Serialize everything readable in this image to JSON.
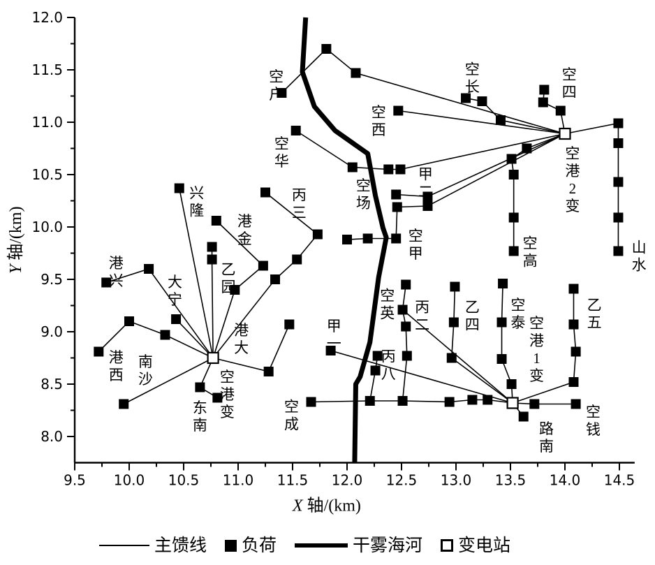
{
  "legend": {
    "items": [
      {
        "symbol": "thin-line",
        "label": "主馈线"
      },
      {
        "symbol": "filled-square",
        "label": "负荷"
      },
      {
        "symbol": "thick-line",
        "label": "干雾海河"
      },
      {
        "symbol": "open-square",
        "label": "变电站"
      }
    ]
  },
  "chart_data": {
    "type": "scatter",
    "title": "",
    "xlabel": "X 轴/(km)",
    "ylabel": "Y 轴/(km)",
    "xlim": [
      9.5,
      14.64
    ],
    "ylim": [
      7.75,
      12.0
    ],
    "xticks": [
      9.5,
      10.0,
      10.5,
      11.0,
      11.5,
      12.0,
      12.5,
      13.0,
      13.5,
      14.0,
      14.5
    ],
    "yticks": [
      8.0,
      8.5,
      9.0,
      9.5,
      10.0,
      10.5,
      11.0,
      11.5,
      12.0
    ],
    "grid": false,
    "legend_position": "bottom",
    "colors": {
      "foreground": "#000000",
      "background": "#ffffff"
    },
    "substations": [
      {
        "name": "空港变",
        "x": 10.77,
        "y": 8.75,
        "label": {
          "text": "空港变",
          "x": 10.9,
          "y": 8.4
        }
      },
      {
        "name": "空港2变",
        "x": 14.0,
        "y": 10.89,
        "label": {
          "text": "空港2变",
          "x": 14.07,
          "y": 10.45
        }
      },
      {
        "name": "空港1变",
        "x": 13.52,
        "y": 8.32,
        "label": {
          "text": "空港1变",
          "x": 13.74,
          "y": 8.83
        }
      }
    ],
    "river": {
      "name": "干雾海河",
      "path": [
        [
          11.62,
          12.0
        ],
        [
          11.59,
          11.48
        ],
        [
          11.7,
          11.15
        ],
        [
          11.89,
          10.92
        ],
        [
          12.19,
          10.7
        ],
        [
          12.26,
          10.3
        ],
        [
          12.33,
          9.99
        ],
        [
          12.36,
          9.9
        ],
        [
          12.29,
          9.52
        ],
        [
          12.21,
          8.9
        ],
        [
          12.12,
          8.57
        ],
        [
          12.08,
          8.5
        ],
        [
          12.07,
          7.75
        ]
      ]
    },
    "feeders": [
      {
        "points": [
          [
            10.77,
            8.75
          ],
          [
            10.46,
            10.37
          ]
        ]
      },
      {
        "points": [
          [
            10.77,
            8.75
          ],
          [
            10.76,
            9.69
          ],
          [
            10.76,
            9.81
          ]
        ]
      },
      {
        "points": [
          [
            10.77,
            8.75
          ],
          [
            10.97,
            9.4
          ],
          [
            11.23,
            9.63
          ],
          [
            10.8,
            10.06
          ]
        ]
      },
      {
        "points": [
          [
            10.77,
            8.75
          ],
          [
            11.34,
            9.5
          ],
          [
            11.54,
            9.69
          ],
          [
            11.73,
            9.93
          ],
          [
            11.25,
            10.33
          ]
        ]
      },
      {
        "points": [
          [
            10.77,
            8.75
          ],
          [
            10.18,
            9.6
          ],
          [
            9.79,
            9.47
          ]
        ]
      },
      {
        "points": [
          [
            10.77,
            8.75
          ],
          [
            10.43,
            9.12
          ]
        ]
      },
      {
        "points": [
          [
            10.77,
            8.75
          ],
          [
            10.33,
            8.97
          ],
          [
            10.0,
            9.1
          ],
          [
            9.72,
            8.81
          ]
        ]
      },
      {
        "points": [
          [
            10.77,
            8.75
          ],
          [
            9.95,
            8.31
          ]
        ]
      },
      {
        "points": [
          [
            10.77,
            8.75
          ],
          [
            10.65,
            8.47
          ],
          [
            10.81,
            8.37
          ]
        ]
      },
      {
        "points": [
          [
            10.77,
            8.75
          ],
          [
            11.28,
            8.62
          ],
          [
            11.47,
            9.07
          ]
        ]
      },
      {
        "points": [
          [
            14.0,
            10.89
          ],
          [
            12.08,
            11.47
          ],
          [
            11.81,
            11.7
          ],
          [
            11.4,
            11.28
          ]
        ]
      },
      {
        "points": [
          [
            14.0,
            10.89
          ],
          [
            12.47,
            11.11
          ]
        ]
      },
      {
        "points": [
          [
            14.0,
            10.89
          ],
          [
            13.41,
            11.02
          ],
          [
            13.24,
            11.2
          ],
          [
            13.09,
            11.23
          ]
        ]
      },
      {
        "points": [
          [
            14.0,
            10.89
          ],
          [
            13.96,
            11.11
          ],
          [
            13.8,
            11.19
          ],
          [
            13.81,
            11.31
          ]
        ]
      },
      {
        "points": [
          [
            14.0,
            10.89
          ],
          [
            14.49,
            10.99
          ],
          [
            14.49,
            10.8
          ],
          [
            14.49,
            10.43
          ],
          [
            14.49,
            10.09
          ],
          [
            14.49,
            9.77
          ]
        ]
      },
      {
        "points": [
          [
            14.0,
            10.89
          ],
          [
            13.65,
            10.75
          ],
          [
            13.51,
            10.65
          ],
          [
            13.53,
            10.5
          ],
          [
            13.53,
            10.09
          ],
          [
            13.53,
            9.77
          ]
        ]
      },
      {
        "points": [
          [
            14.0,
            10.89
          ],
          [
            12.49,
            10.55
          ],
          [
            12.38,
            10.55
          ],
          [
            12.05,
            10.57
          ],
          [
            11.53,
            10.92
          ]
        ]
      },
      {
        "points": [
          [
            14.0,
            10.89
          ],
          [
            12.74,
            10.29
          ],
          [
            12.45,
            10.31
          ]
        ]
      },
      {
        "points": [
          [
            14.0,
            10.89
          ],
          [
            12.74,
            10.2
          ],
          [
            12.46,
            10.19
          ],
          [
            12.45,
            9.89
          ],
          [
            12.19,
            9.89
          ],
          [
            12.0,
            9.88
          ]
        ]
      },
      {
        "points": [
          [
            13.52,
            8.32
          ],
          [
            11.85,
            8.82
          ]
        ]
      },
      {
        "points": [
          [
            13.52,
            8.32
          ],
          [
            13.29,
            8.35
          ],
          [
            13.15,
            8.35
          ],
          [
            12.94,
            8.33
          ],
          [
            12.51,
            8.34
          ],
          [
            12.21,
            8.34
          ],
          [
            11.67,
            8.33
          ]
        ]
      },
      {
        "points": [
          [
            12.21,
            8.34
          ],
          [
            12.26,
            8.63
          ],
          [
            12.28,
            8.77
          ]
        ]
      },
      {
        "points": [
          [
            12.51,
            8.34
          ],
          [
            12.55,
            8.77
          ],
          [
            12.54,
            9.05
          ],
          [
            12.51,
            9.21
          ],
          [
            12.54,
            9.45
          ]
        ]
      },
      {
        "points": [
          [
            13.52,
            8.32
          ],
          [
            12.96,
            8.75
          ],
          [
            12.98,
            9.09
          ],
          [
            12.99,
            9.43
          ]
        ]
      },
      {
        "points": [
          [
            13.52,
            8.32
          ],
          [
            12.51,
            9.21
          ]
        ]
      },
      {
        "points": [
          [
            13.52,
            8.32
          ],
          [
            13.51,
            8.5
          ],
          [
            13.42,
            8.74
          ],
          [
            13.42,
            9.09
          ],
          [
            13.43,
            9.46
          ]
        ]
      },
      {
        "points": [
          [
            13.52,
            8.32
          ],
          [
            14.08,
            8.52
          ],
          [
            14.1,
            8.81
          ],
          [
            14.08,
            9.07
          ],
          [
            14.08,
            9.41
          ]
        ]
      },
      {
        "points": [
          [
            13.52,
            8.32
          ],
          [
            13.72,
            8.31
          ],
          [
            14.1,
            8.31
          ]
        ]
      },
      {
        "points": [
          [
            13.52,
            8.32
          ],
          [
            13.62,
            8.19
          ]
        ]
      }
    ],
    "loads": [
      [
        10.46,
        10.37
      ],
      [
        10.76,
        9.69
      ],
      [
        10.76,
        9.81
      ],
      [
        10.97,
        9.4
      ],
      [
        11.23,
        9.63
      ],
      [
        10.8,
        10.06
      ],
      [
        11.34,
        9.5
      ],
      [
        11.54,
        9.69
      ],
      [
        11.73,
        9.93
      ],
      [
        11.25,
        10.33
      ],
      [
        10.18,
        9.6
      ],
      [
        9.79,
        9.47
      ],
      [
        10.43,
        9.12
      ],
      [
        10.33,
        8.97
      ],
      [
        10.0,
        9.1
      ],
      [
        9.72,
        8.81
      ],
      [
        9.95,
        8.31
      ],
      [
        10.65,
        8.47
      ],
      [
        10.81,
        8.37
      ],
      [
        11.28,
        8.62
      ],
      [
        11.47,
        9.07
      ],
      [
        12.08,
        11.47
      ],
      [
        11.81,
        11.7
      ],
      [
        11.4,
        11.28
      ],
      [
        12.47,
        11.11
      ],
      [
        13.41,
        11.02
      ],
      [
        13.24,
        11.2
      ],
      [
        13.09,
        11.23
      ],
      [
        13.96,
        11.11
      ],
      [
        13.8,
        11.19
      ],
      [
        13.81,
        11.31
      ],
      [
        14.49,
        10.99
      ],
      [
        14.49,
        10.8
      ],
      [
        14.49,
        10.43
      ],
      [
        14.49,
        10.09
      ],
      [
        14.49,
        9.77
      ],
      [
        13.65,
        10.75
      ],
      [
        13.51,
        10.65
      ],
      [
        13.53,
        10.5
      ],
      [
        13.53,
        10.09
      ],
      [
        13.53,
        9.77
      ],
      [
        12.49,
        10.55
      ],
      [
        12.38,
        10.55
      ],
      [
        12.05,
        10.57
      ],
      [
        11.53,
        10.92
      ],
      [
        12.74,
        10.29
      ],
      [
        12.45,
        10.31
      ],
      [
        12.74,
        10.2
      ],
      [
        12.46,
        10.19
      ],
      [
        12.45,
        9.89
      ],
      [
        12.19,
        9.89
      ],
      [
        12.0,
        9.88
      ],
      [
        11.85,
        8.82
      ],
      [
        11.67,
        8.33
      ],
      [
        12.21,
        8.34
      ],
      [
        12.51,
        8.34
      ],
      [
        12.94,
        8.33
      ],
      [
        13.15,
        8.35
      ],
      [
        13.29,
        8.35
      ],
      [
        12.26,
        8.63
      ],
      [
        12.28,
        8.77
      ],
      [
        12.55,
        8.77
      ],
      [
        12.54,
        9.05
      ],
      [
        12.51,
        9.21
      ],
      [
        12.54,
        9.45
      ],
      [
        12.96,
        8.75
      ],
      [
        12.98,
        9.09
      ],
      [
        12.99,
        9.43
      ],
      [
        13.51,
        8.5
      ],
      [
        13.42,
        8.74
      ],
      [
        13.42,
        9.09
      ],
      [
        13.43,
        9.46
      ],
      [
        14.08,
        8.52
      ],
      [
        14.1,
        8.81
      ],
      [
        14.08,
        9.07
      ],
      [
        14.08,
        9.41
      ],
      [
        13.72,
        8.31
      ],
      [
        14.1,
        8.31
      ],
      [
        13.62,
        8.19
      ]
    ],
    "node_labels": [
      {
        "text": "兴隆",
        "x": 10.62,
        "y": 10.24
      },
      {
        "text": "港金",
        "x": 11.06,
        "y": 9.97
      },
      {
        "text": "丙三",
        "x": 11.56,
        "y": 10.22
      },
      {
        "text": "乙园",
        "x": 10.91,
        "y": 9.51
      },
      {
        "text": "港兴",
        "x": 9.88,
        "y": 9.57
      },
      {
        "text": "大宁",
        "x": 10.42,
        "y": 9.39
      },
      {
        "text": "港西",
        "x": 9.88,
        "y": 8.67
      },
      {
        "text": "南沙",
        "x": 10.15,
        "y": 8.63
      },
      {
        "text": "东南",
        "x": 10.65,
        "y": 8.19
      },
      {
        "text": "港大",
        "x": 11.03,
        "y": 8.93
      },
      {
        "text": "空成",
        "x": 11.49,
        "y": 8.2
      },
      {
        "text": "甲一",
        "x": 11.88,
        "y": 8.97
      },
      {
        "text": "空户",
        "x": 11.35,
        "y": 11.35
      },
      {
        "text": "空华",
        "x": 11.4,
        "y": 10.71
      },
      {
        "text": "空场",
        "x": 12.15,
        "y": 10.31
      },
      {
        "text": "空西",
        "x": 12.29,
        "y": 11.01
      },
      {
        "text": "空长",
        "x": 13.15,
        "y": 11.42
      },
      {
        "text": "空四",
        "x": 14.04,
        "y": 11.37
      },
      {
        "text": "山水",
        "x": 14.68,
        "y": 9.72
      },
      {
        "text": "空高",
        "x": 13.68,
        "y": 9.76
      },
      {
        "text": "甲二",
        "x": 12.72,
        "y": 10.42
      },
      {
        "text": "空甲",
        "x": 12.63,
        "y": 9.83
      },
      {
        "text": "空英",
        "x": 12.37,
        "y": 9.26
      },
      {
        "text": "丙八",
        "x": 12.38,
        "y": 8.68
      },
      {
        "text": "丙二",
        "x": 12.69,
        "y": 9.15
      },
      {
        "text": "乙四",
        "x": 13.15,
        "y": 9.15
      },
      {
        "text": "空泰",
        "x": 13.57,
        "y": 9.17
      },
      {
        "text": "乙五",
        "x": 14.27,
        "y": 9.17
      },
      {
        "text": "空钱",
        "x": 14.26,
        "y": 8.15
      },
      {
        "text": "路南",
        "x": 13.83,
        "y": 7.99
      }
    ]
  }
}
